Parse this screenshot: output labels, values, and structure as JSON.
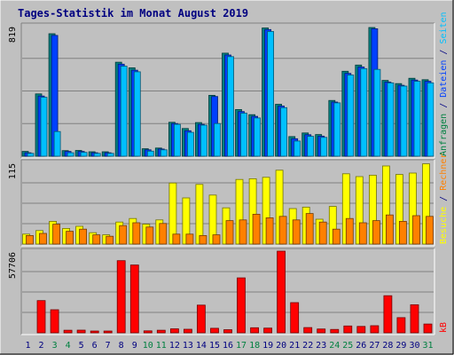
{
  "chart_data": {
    "type": "bar",
    "title": "Tages-Statistik im Monat August 2019",
    "days": [
      {
        "label": "1",
        "weekend": false
      },
      {
        "label": "2",
        "weekend": false
      },
      {
        "label": "3",
        "weekend": true
      },
      {
        "label": "4",
        "weekend": true
      },
      {
        "label": "5",
        "weekend": false
      },
      {
        "label": "6",
        "weekend": false
      },
      {
        "label": "7",
        "weekend": false
      },
      {
        "label": "8",
        "weekend": false
      },
      {
        "label": "9",
        "weekend": false
      },
      {
        "label": "10",
        "weekend": true
      },
      {
        "label": "11",
        "weekend": true
      },
      {
        "label": "12",
        "weekend": false
      },
      {
        "label": "13",
        "weekend": false
      },
      {
        "label": "14",
        "weekend": false
      },
      {
        "label": "15",
        "weekend": false
      },
      {
        "label": "16",
        "weekend": false
      },
      {
        "label": "17",
        "weekend": true
      },
      {
        "label": "18",
        "weekend": true
      },
      {
        "label": "19",
        "weekend": false
      },
      {
        "label": "20",
        "weekend": false
      },
      {
        "label": "21",
        "weekend": false
      },
      {
        "label": "22",
        "weekend": false
      },
      {
        "label": "23",
        "weekend": false
      },
      {
        "label": "24",
        "weekend": true
      },
      {
        "label": "25",
        "weekend": true
      },
      {
        "label": "26",
        "weekend": false
      },
      {
        "label": "27",
        "weekend": false
      },
      {
        "label": "28",
        "weekend": false
      },
      {
        "label": "29",
        "weekend": false
      },
      {
        "label": "30",
        "weekend": false
      },
      {
        "label": "31",
        "weekend": true
      }
    ],
    "panels": [
      {
        "id": "top",
        "max_label": "819",
        "ymax": 819,
        "side_labels": [
          {
            "text": "Anfragen",
            "color": "#008040"
          },
          {
            "text": " / ",
            "color": "#000080"
          },
          {
            "text": "Dateien",
            "color": "#0040ff"
          },
          {
            "text": " / ",
            "color": "#000080"
          },
          {
            "text": "Seiten",
            "color": "#00c0ff"
          }
        ],
        "series": [
          {
            "name": "Anfragen",
            "color": "#008080",
            "values": [
              30,
              391,
              769,
              35,
              36,
              28,
              28,
              590,
              555,
              47,
              51,
              213,
              174,
              211,
              382,
              647,
              293,
              261,
              805,
              326,
              123,
              146,
              136,
              350,
              533,
              572,
              808,
              476,
              456,
              489,
              480
            ]
          },
          {
            "name": "Dateien",
            "color": "#0040ff",
            "values": [
              22,
              378,
              758,
              30,
              30,
              22,
              22,
              578,
              540,
              40,
              45,
              205,
              160,
              200,
              375,
              635,
              280,
              250,
              795,
              315,
              110,
              135,
              126,
              340,
              520,
              560,
              800,
              465,
              445,
              478,
              470
            ]
          },
          {
            "name": "Seiten",
            "color": "#00c0ff",
            "values": [
              18,
              370,
              155,
              22,
              24,
              18,
              18,
              565,
              530,
              32,
              40,
              200,
              150,
              195,
              205,
              625,
              270,
              240,
              783,
              305,
              95,
              125,
              118,
              335,
              510,
              550,
              545,
              460,
              440,
              470,
              460
            ]
          }
        ]
      },
      {
        "id": "middle",
        "max_label": "115",
        "ymax": 115,
        "side_labels": [
          {
            "text": "Besuche",
            "color": "#ffff00"
          },
          {
            "text": " / ",
            "color": "#000080"
          },
          {
            "text": "Rechner",
            "color": "#ff8000"
          }
        ],
        "series": [
          {
            "name": "Besuche",
            "color": "#ffff00",
            "values": [
              14,
              19,
              32,
              22,
              25,
              16,
              13,
              31,
              36,
              28,
              34,
              86,
              65,
              84,
              69,
              51,
              91,
              92,
              94,
              104,
              50,
              52,
              35,
              53,
              99,
              95,
              97,
              110,
              98,
              100,
              113
            ]
          },
          {
            "name": "Rechner",
            "color": "#ff8000",
            "values": [
              12,
              15,
              28,
              18,
              21,
              13,
              11,
              26,
              30,
              24,
              29,
              14,
              14,
              12,
              13,
              33,
              34,
              42,
              37,
              39,
              34,
              43,
              31,
              21,
              36,
              30,
              33,
              41,
              32,
              40,
              39
            ]
          }
        ]
      },
      {
        "id": "bottom",
        "max_label": "57706",
        "ymax": 57706,
        "side_labels": [
          {
            "text": "kB",
            "color": "#ff0000"
          }
        ],
        "series": [
          {
            "name": "kB",
            "color": "#ff0000",
            "values": [
              0,
              22800,
              16300,
              1800,
              1900,
              800,
              800,
              51000,
              47900,
              1400,
              1800,
              2800,
              2500,
              19600,
              3200,
              2200,
              38800,
              3600,
              3300,
              57706,
              21300,
              3700,
              2700,
              2400,
              4800,
              4500,
              5000,
              26200,
              10700,
              19800,
              6200
            ]
          }
        ]
      }
    ]
  }
}
